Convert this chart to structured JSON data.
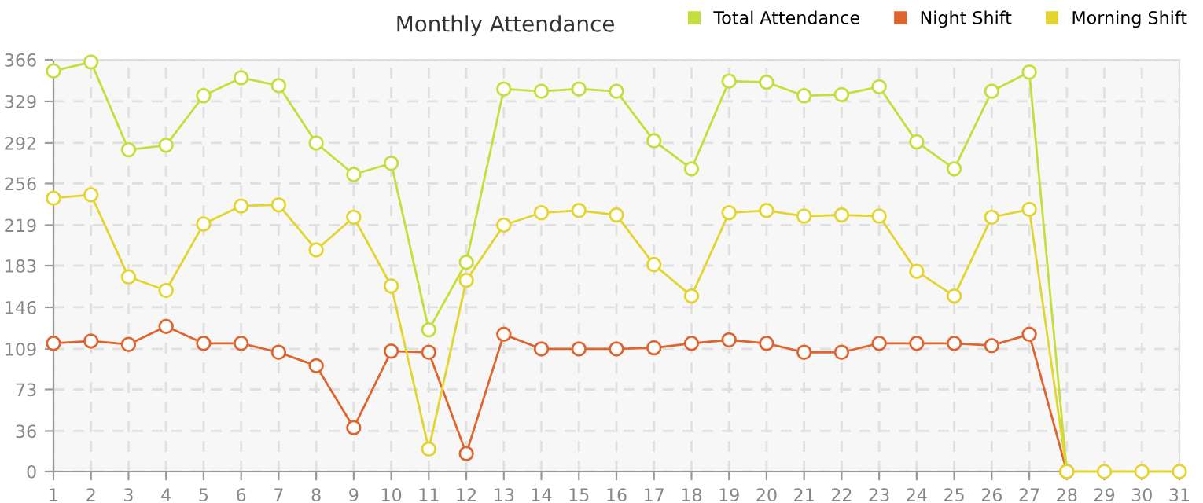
{
  "chart_data": {
    "type": "line",
    "title": "Monthly Attendance",
    "x": [
      1,
      2,
      3,
      4,
      5,
      6,
      7,
      8,
      9,
      10,
      11,
      12,
      13,
      14,
      15,
      16,
      17,
      18,
      19,
      20,
      21,
      22,
      23,
      24,
      25,
      26,
      27,
      28,
      29,
      30,
      31
    ],
    "series": [
      {
        "name": "Total Attendance",
        "color": "#c4de3c",
        "values": [
          356,
          364,
          286,
          290,
          334,
          350,
          343,
          292,
          264,
          274,
          126,
          186,
          340,
          338,
          340,
          338,
          294,
          269,
          347,
          346,
          334,
          335,
          342,
          293,
          269,
          338,
          355,
          0,
          null,
          null,
          null
        ]
      },
      {
        "name": "Night Shift",
        "color": "#e0642e",
        "values": [
          114,
          116,
          113,
          129,
          114,
          114,
          106,
          94,
          39,
          107,
          106,
          16,
          122,
          109,
          109,
          109,
          110,
          114,
          117,
          114,
          106,
          106,
          114,
          114,
          114,
          112,
          122,
          0,
          null,
          null,
          null
        ]
      },
      {
        "name": "Morning Shift",
        "color": "#e3d430",
        "values": [
          243,
          246,
          173,
          161,
          220,
          236,
          237,
          197,
          226,
          165,
          20,
          170,
          219,
          230,
          232,
          228,
          184,
          156,
          230,
          232,
          227,
          228,
          227,
          178,
          156,
          226,
          233,
          0,
          0,
          0,
          0
        ]
      }
    ],
    "xlim": [
      1,
      31
    ],
    "xticks": [
      1,
      2,
      3,
      4,
      5,
      6,
      7,
      8,
      9,
      10,
      11,
      12,
      13,
      14,
      15,
      16,
      17,
      18,
      19,
      20,
      21,
      22,
      23,
      24,
      25,
      26,
      27,
      28,
      29,
      30,
      31
    ],
    "ylim": [
      0,
      366
    ],
    "yticks": [
      0,
      36,
      73,
      109,
      146,
      183,
      219,
      256,
      292,
      329,
      366
    ],
    "grid": true,
    "legend": "top right",
    "marker": "circle",
    "line_style": "solid"
  }
}
